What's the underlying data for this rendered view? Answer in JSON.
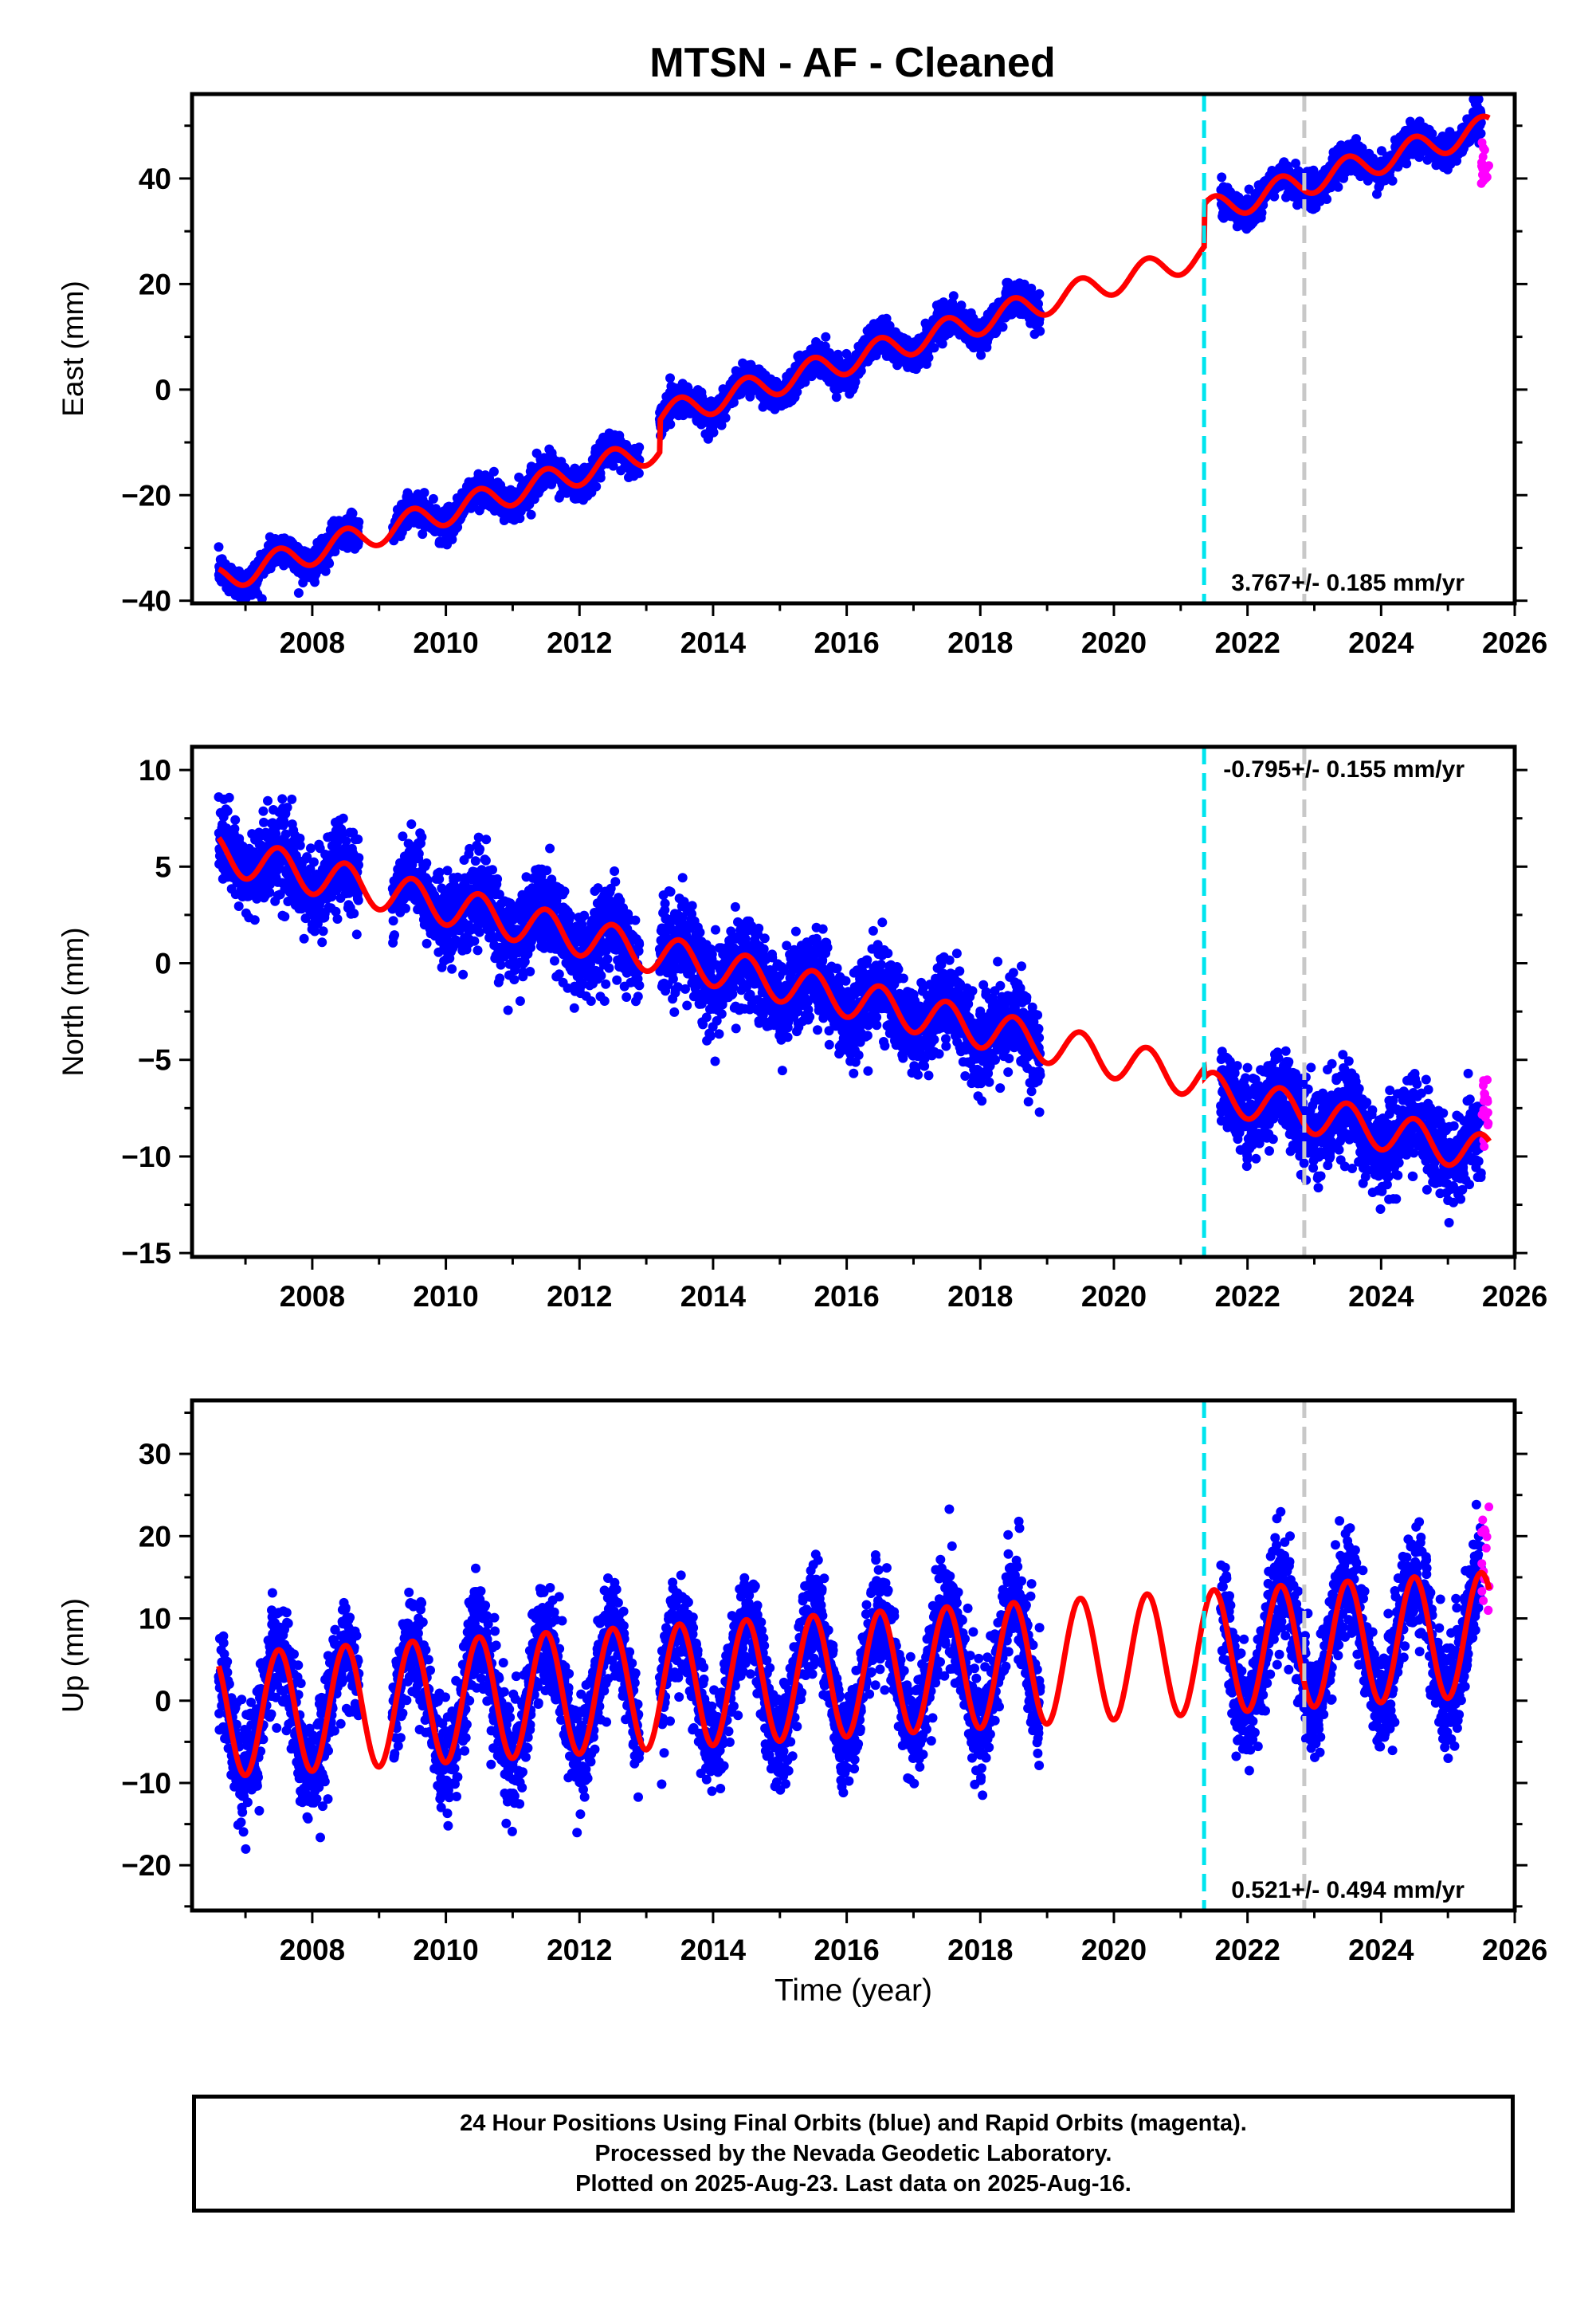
{
  "title": "MTSN  - AF - Cleaned",
  "xlabel": "Time (year)",
  "footer": {
    "line1": "24 Hour Positions Using Final Orbits (blue) and Rapid Orbits (magenta).",
    "line2": "Processed by the Nevada Geodetic Laboratory.",
    "line3": "Plotted on 2025-Aug-23. Last data on 2025-Aug-16."
  },
  "colors": {
    "final_orbits": "#0000ff",
    "rapid_orbits": "#ff00ff",
    "model": "#ff0000",
    "equipment_change": "#00e5ee",
    "other_event": "#c8c8c8"
  },
  "chart_data": [
    {
      "type": "scatter",
      "panel": "east",
      "ylabel": "East (mm)",
      "xlim": [
        2006.2,
        2026.0
      ],
      "ylim": [
        -40.5,
        56
      ],
      "xticks": [
        2008,
        2010,
        2012,
        2014,
        2016,
        2018,
        2020,
        2022,
        2024,
        2026
      ],
      "yticks": [
        -40,
        -20,
        0,
        20,
        40
      ],
      "rate_text": "3.767+/- 0.185 mm/yr",
      "rate_position": "bottom-right",
      "event_lines": [
        {
          "x": 2021.35,
          "style": "dashed",
          "color": "cyan"
        },
        {
          "x": 2022.85,
          "style": "dashed",
          "color": "gray"
        }
      ],
      "model": {
        "intercept_2006": -37.5,
        "rate": 3.767,
        "seasonal_amp": 2.5,
        "breaks": [
          {
            "x": 2013.2,
            "offset": 6.0
          },
          {
            "x": 2021.35,
            "offset": 8.0
          }
        ]
      },
      "noise_sd": 1.5,
      "data_segments": [
        [
          2006.6,
          2008.7
        ],
        [
          2009.2,
          2012.9
        ],
        [
          2013.2,
          2018.9
        ],
        [
          2021.6,
          2025.5
        ]
      ],
      "rapid": {
        "x_range": [
          2025.5,
          2025.62
        ],
        "y_range": [
          39,
          47
        ]
      }
    },
    {
      "type": "scatter",
      "panel": "north",
      "ylabel": "North (mm)",
      "xlim": [
        2006.2,
        2026.0
      ],
      "ylim": [
        -15.2,
        11.2
      ],
      "xticks": [
        2008,
        2010,
        2012,
        2014,
        2016,
        2018,
        2020,
        2022,
        2024,
        2026
      ],
      "yticks": [
        -15,
        -10,
        -5,
        0,
        5,
        10
      ],
      "rate_text": "-0.795+/- 0.155 mm/yr",
      "rate_position": "top-right",
      "event_lines": [
        {
          "x": 2021.35,
          "style": "dashed",
          "color": "cyan"
        },
        {
          "x": 2022.85,
          "style": "dashed",
          "color": "gray"
        }
      ],
      "model": {
        "intercept_2006": 6.0,
        "rate": -0.795,
        "seasonal_amp": 1.0,
        "breaks": [
          {
            "x": 2021.35,
            "offset": -0.5
          }
        ]
      },
      "noise_sd": 1.1,
      "data_segments": [
        [
          2006.6,
          2008.7
        ],
        [
          2009.2,
          2012.9
        ],
        [
          2013.2,
          2018.9
        ],
        [
          2021.6,
          2025.5
        ]
      ],
      "rapid": {
        "x_range": [
          2025.5,
          2025.62
        ],
        "y_range": [
          -10,
          -5.5
        ]
      }
    },
    {
      "type": "scatter",
      "panel": "up",
      "ylabel": "Up (mm)",
      "xlim": [
        2006.2,
        2026.0
      ],
      "ylim": [
        -25.5,
        36.5
      ],
      "xticks": [
        2008,
        2010,
        2012,
        2014,
        2016,
        2018,
        2020,
        2022,
        2024,
        2026
      ],
      "yticks": [
        -20,
        -10,
        0,
        10,
        20,
        30
      ],
      "rate_text": "0.521+/- 0.494 mm/yr",
      "rate_position": "bottom-right",
      "event_lines": [
        {
          "x": 2021.35,
          "style": "dashed",
          "color": "cyan"
        },
        {
          "x": 2022.85,
          "style": "dashed",
          "color": "gray"
        }
      ],
      "model": {
        "intercept_2006": -2.0,
        "rate": 0.521,
        "seasonal_amp": 7.5,
        "breaks": [
          {
            "x": 2021.35,
            "offset": 0.0
          }
        ]
      },
      "noise_sd": 3.2,
      "data_segments": [
        [
          2006.6,
          2008.7
        ],
        [
          2009.2,
          2012.9
        ],
        [
          2013.2,
          2018.9
        ],
        [
          2021.6,
          2025.5
        ]
      ],
      "rapid": {
        "x_range": [
          2025.5,
          2025.62
        ],
        "y_range": [
          8,
          25.5
        ]
      }
    }
  ]
}
